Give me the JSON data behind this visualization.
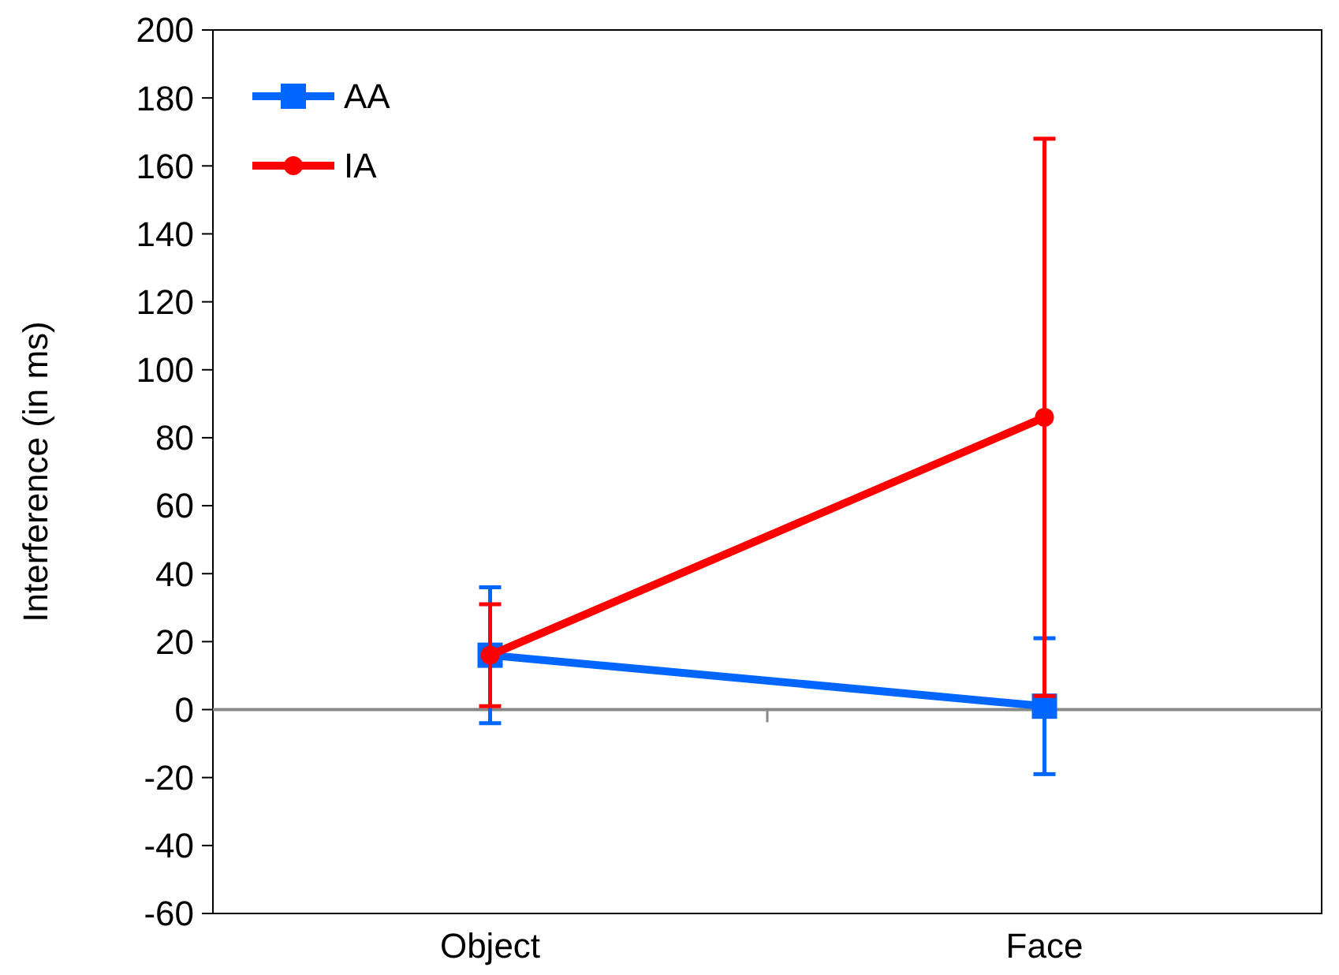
{
  "chart_data": {
    "type": "line",
    "ylabel": "Interference (in ms)",
    "categories": [
      "Object",
      "Face"
    ],
    "series": [
      {
        "name": "AA",
        "color": "#0066ff",
        "values": [
          16,
          1
        ],
        "errors": [
          20,
          20
        ],
        "marker": "square"
      },
      {
        "name": "IA",
        "color": "#ff0000",
        "values": [
          16,
          86
        ],
        "errors": [
          15,
          82
        ],
        "marker": "circle"
      }
    ],
    "ylim": [
      -60,
      200
    ],
    "yticks": [
      -60,
      -40,
      -20,
      0,
      20,
      40,
      60,
      80,
      100,
      120,
      140,
      160,
      180,
      200
    ],
    "legend": "top left",
    "ref_lines": [
      {
        "axis": "y",
        "value": 0,
        "color": "#888888"
      }
    ]
  }
}
